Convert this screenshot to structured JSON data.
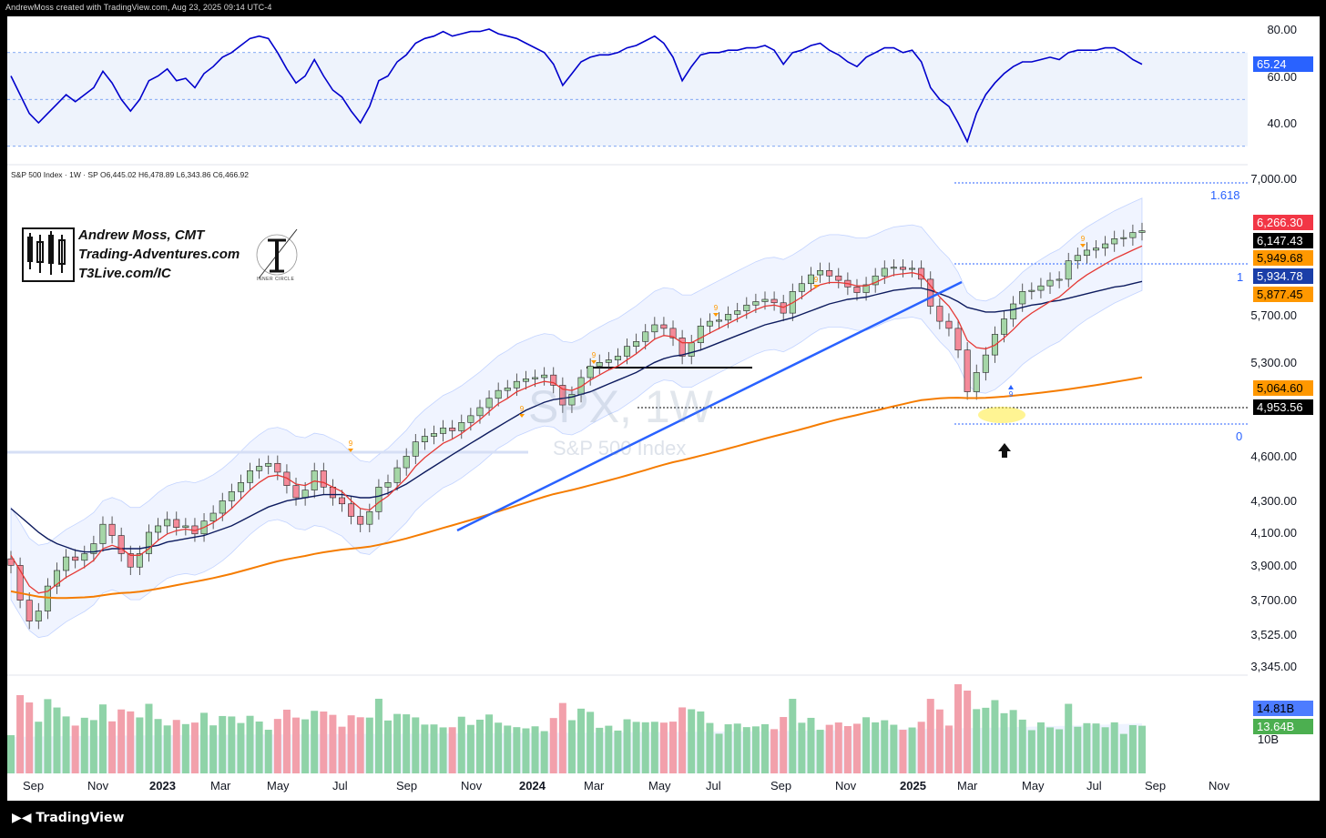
{
  "header": {
    "text": "AndrewMoss created with TradingView.com, Aug 23, 2025 09:14 UTC-4"
  },
  "footer": {
    "brand": "TradingView"
  },
  "symbol": {
    "ohlc_line": "S&P 500 Index · 1W · SP  O6,445.02  H6,478.89  L6,343.86  C6,466.92",
    "watermark_ticker": "SPX, 1W",
    "watermark_name": "S&P 500 Index"
  },
  "author": {
    "name": "Andrew Moss, CMT",
    "site": "Trading-Adventures.com",
    "link": "T3Live.com/IC",
    "ic_label": "INNER CIRCLE"
  },
  "colors": {
    "rsi_line": "#0000cc",
    "up_candle": "#4caf50",
    "down_candle": "#ef5350",
    "ema_red": "#e53935",
    "ema_orange": "#f57c00",
    "sma_navy": "#0d1b5e",
    "trendline": "#2962ff",
    "volume_up": "#8fd3a8",
    "volume_down": "#f2a0ab"
  },
  "rsi_axis": [
    "80.00",
    "60.00",
    "40.00"
  ],
  "rsi_value": "65.24",
  "price_axis": [
    "7,000.00",
    "5,700.00",
    "5,300.00",
    "4,600.00",
    "4,300.00",
    "4,100.00",
    "3,900.00",
    "3,700.00",
    "3,525.00",
    "3,345.00"
  ],
  "price_badges": [
    {
      "value": "6,266.30",
      "color": "#f23645"
    },
    {
      "value": "6,147.43",
      "color": "#000000"
    },
    {
      "value": "5,949.68",
      "color": "#ff9800"
    },
    {
      "value": "5,934.78",
      "color": "#1a3ea8"
    },
    {
      "value": "5,877.45",
      "color": "#ff9800"
    },
    {
      "value": "5,064.60",
      "color": "#ff9800"
    },
    {
      "value": "4,953.56",
      "color": "#000000"
    }
  ],
  "fib_levels": [
    "1.618",
    "1",
    "0"
  ],
  "volume_badges": [
    {
      "value": "14.81B",
      "color": "#2962ff"
    },
    {
      "value": "13.64B",
      "color": "#4caf50"
    }
  ],
  "volume_axis": "10B",
  "x_axis": [
    {
      "label": "Sep",
      "bold": false
    },
    {
      "label": "Nov",
      "bold": false
    },
    {
      "label": "2023",
      "bold": true
    },
    {
      "label": "Mar",
      "bold": false
    },
    {
      "label": "May",
      "bold": false
    },
    {
      "label": "Jul",
      "bold": false
    },
    {
      "label": "Sep",
      "bold": false
    },
    {
      "label": "Nov",
      "bold": false
    },
    {
      "label": "2024",
      "bold": true
    },
    {
      "label": "Mar",
      "bold": false
    },
    {
      "label": "May",
      "bold": false
    },
    {
      "label": "Jul",
      "bold": false
    },
    {
      "label": "Sep",
      "bold": false
    },
    {
      "label": "Nov",
      "bold": false
    },
    {
      "label": "2025",
      "bold": true
    },
    {
      "label": "Mar",
      "bold": false
    },
    {
      "label": "May",
      "bold": false
    },
    {
      "label": "Jul",
      "bold": false
    },
    {
      "label": "Sep",
      "bold": false
    },
    {
      "label": "Nov",
      "bold": false
    }
  ],
  "td_marker": "9",
  "chart_data": {
    "type": "line",
    "title": "S&P 500 Index, 1W",
    "price_range": [
      3345,
      7000
    ],
    "rsi_range": [
      30,
      80
    ],
    "log_scale": true,
    "grid": false,
    "close_series": [
      3900,
      3700,
      3585,
      3640,
      3780,
      3870,
      3950,
      3930,
      3970,
      4030,
      4150,
      4080,
      3970,
      3890,
      3970,
      4100,
      4140,
      4180,
      4130,
      4140,
      4090,
      4170,
      4220,
      4300,
      4360,
      4420,
      4500,
      4530,
      4550,
      4490,
      4400,
      4320,
      4370,
      4500,
      4390,
      4320,
      4280,
      4200,
      4150,
      4230,
      4390,
      4420,
      4520,
      4600,
      4700,
      4740,
      4760,
      4800,
      4780,
      4840,
      4890,
      4950,
      5020,
      5080,
      5100,
      5150,
      5170,
      5180,
      5200,
      5120,
      4970,
      5050,
      5180,
      5270,
      5300,
      5320,
      5350,
      5430,
      5470,
      5550,
      5610,
      5580,
      5500,
      5350,
      5460,
      5600,
      5640,
      5650,
      5700,
      5730,
      5780,
      5810,
      5830,
      5800,
      5710,
      5900,
      5970,
      6050,
      6090,
      6040,
      6000,
      5940,
      5890,
      5960,
      6040,
      6110,
      6120,
      6100,
      6110,
      6010,
      5770,
      5640,
      5580,
      5400,
      5070,
      5220,
      5360,
      5530,
      5660,
      5790,
      5900,
      5910,
      5950,
      6000,
      6010,
      6180,
      6230,
      6280,
      6300,
      6340,
      6390,
      6400,
      6450,
      6467
    ],
    "ema_fast": [
      3960,
      3870,
      3780,
      3740,
      3750,
      3790,
      3830,
      3860,
      3890,
      3930,
      4000,
      4020,
      4000,
      3960,
      3960,
      4000,
      4050,
      4090,
      4110,
      4120,
      4110,
      4130,
      4160,
      4200,
      4250,
      4310,
      4370,
      4420,
      4460,
      4470,
      4450,
      4410,
      4400,
      4430,
      4420,
      4390,
      4360,
      4300,
      4250,
      4240,
      4290,
      4330,
      4390,
      4450,
      4530,
      4590,
      4640,
      4690,
      4720,
      4760,
      4810,
      4860,
      4920,
      4980,
      5020,
      5070,
      5100,
      5130,
      5150,
      5140,
      5090,
      5080,
      5110,
      5160,
      5200,
      5240,
      5270,
      5320,
      5370,
      5430,
      5490,
      5520,
      5510,
      5460,
      5460,
      5500,
      5540,
      5580,
      5620,
      5660,
      5700,
      5740,
      5770,
      5780,
      5760,
      5800,
      5850,
      5910,
      5960,
      5980,
      5980,
      5970,
      5950,
      5950,
      5980,
      6020,
      6050,
      6060,
      6070,
      6050,
      5950,
      5850,
      5770,
      5650,
      5480,
      5420,
      5410,
      5440,
      5500,
      5570,
      5650,
      5710,
      5760,
      5810,
      5850,
      5920,
      5990,
      6050,
      6100,
      6150,
      6200,
      6240,
      6280,
      6320
    ],
    "sma_slow": [
      4250,
      4200,
      4150,
      4100,
      4060,
      4030,
      4010,
      3990,
      3980,
      3980,
      3990,
      4000,
      4000,
      4000,
      4000,
      4010,
      4020,
      4040,
      4050,
      4060,
      4070,
      4080,
      4100,
      4120,
      4140,
      4170,
      4200,
      4230,
      4260,
      4280,
      4300,
      4310,
      4320,
      4330,
      4340,
      4340,
      4340,
      4330,
      4320,
      4320,
      4330,
      4350,
      4380,
      4410,
      4450,
      4490,
      4530,
      4570,
      4610,
      4650,
      4690,
      4730,
      4770,
      4810,
      4850,
      4890,
      4930,
      4960,
      4990,
      5010,
      5020,
      5030,
      5050,
      5070,
      5100,
      5130,
      5160,
      5190,
      5220,
      5260,
      5300,
      5330,
      5350,
      5360,
      5380,
      5400,
      5430,
      5460,
      5490,
      5520,
      5550,
      5580,
      5610,
      5630,
      5650,
      5670,
      5700,
      5730,
      5760,
      5790,
      5810,
      5830,
      5840,
      5850,
      5870,
      5890,
      5910,
      5920,
      5930,
      5930,
      5910,
      5880,
      5850,
      5810,
      5760,
      5740,
      5720,
      5720,
      5730,
      5740,
      5760,
      5780,
      5790,
      5810,
      5820,
      5840,
      5860,
      5880,
      5900,
      5920,
      5940,
      5950,
      5970,
      5990
    ],
    "ema_200": [
      3750,
      3740,
      3730,
      3720,
      3715,
      3712,
      3712,
      3714,
      3716,
      3720,
      3728,
      3735,
      3740,
      3743,
      3748,
      3756,
      3765,
      3775,
      3785,
      3795,
      3805,
      3815,
      3826,
      3838,
      3851,
      3865,
      3880,
      3895,
      3910,
      3924,
      3936,
      3946,
      3956,
      3968,
      3978,
      3986,
      3994,
      4000,
      4005,
      4012,
      4023,
      4035,
      4048,
      4062,
      4078,
      4094,
      4110,
      4127,
      4143,
      4160,
      4177,
      4195,
      4213,
      4232,
      4250,
      4269,
      4288,
      4307,
      4326,
      4343,
      4357,
      4371,
      4386,
      4402,
      4418,
      4434,
      4451,
      4468,
      4486,
      4504,
      4523,
      4541,
      4558,
      4572,
      4587,
      4603,
      4619,
      4636,
      4653,
      4670,
      4688,
      4706,
      4724,
      4741,
      4757,
      4774,
      4792,
      4810,
      4829,
      4847,
      4864,
      4880,
      4895,
      4911,
      4927,
      4944,
      4960,
      4976,
      4992,
      5006,
      5014,
      5020,
      5024,
      5025,
      5022,
      5022,
      5024,
      5028,
      5033,
      5040,
      5047,
      5055,
      5063,
      5071,
      5080,
      5090,
      5100,
      5111,
      5122,
      5133,
      5145,
      5157,
      5169,
      5182
    ],
    "rsi": [
      60,
      52,
      44,
      40,
      44,
      48,
      52,
      49,
      52,
      55,
      62,
      57,
      50,
      45,
      50,
      58,
      60,
      63,
      58,
      59,
      55,
      61,
      64,
      68,
      70,
      73,
      76,
      77,
      76,
      70,
      63,
      57,
      60,
      67,
      60,
      54,
      51,
      45,
      40,
      47,
      58,
      60,
      66,
      69,
      74,
      76,
      77,
      79,
      77,
      78,
      79,
      79,
      80,
      78,
      77,
      76,
      74,
      72,
      70,
      65,
      56,
      61,
      66,
      68,
      69,
      69,
      70,
      72,
      73,
      75,
      77,
      74,
      68,
      58,
      64,
      69,
      70,
      70,
      71,
      71,
      72,
      72,
      73,
      71,
      65,
      70,
      71,
      73,
      74,
      71,
      69,
      66,
      64,
      68,
      70,
      72,
      72,
      70,
      71,
      66,
      55,
      50,
      47,
      40,
      32,
      44,
      52,
      57,
      61,
      64,
      66,
      66,
      67,
      68,
      67,
      70,
      71,
      71,
      71,
      72,
      72,
      70,
      67,
      65
    ]
  }
}
